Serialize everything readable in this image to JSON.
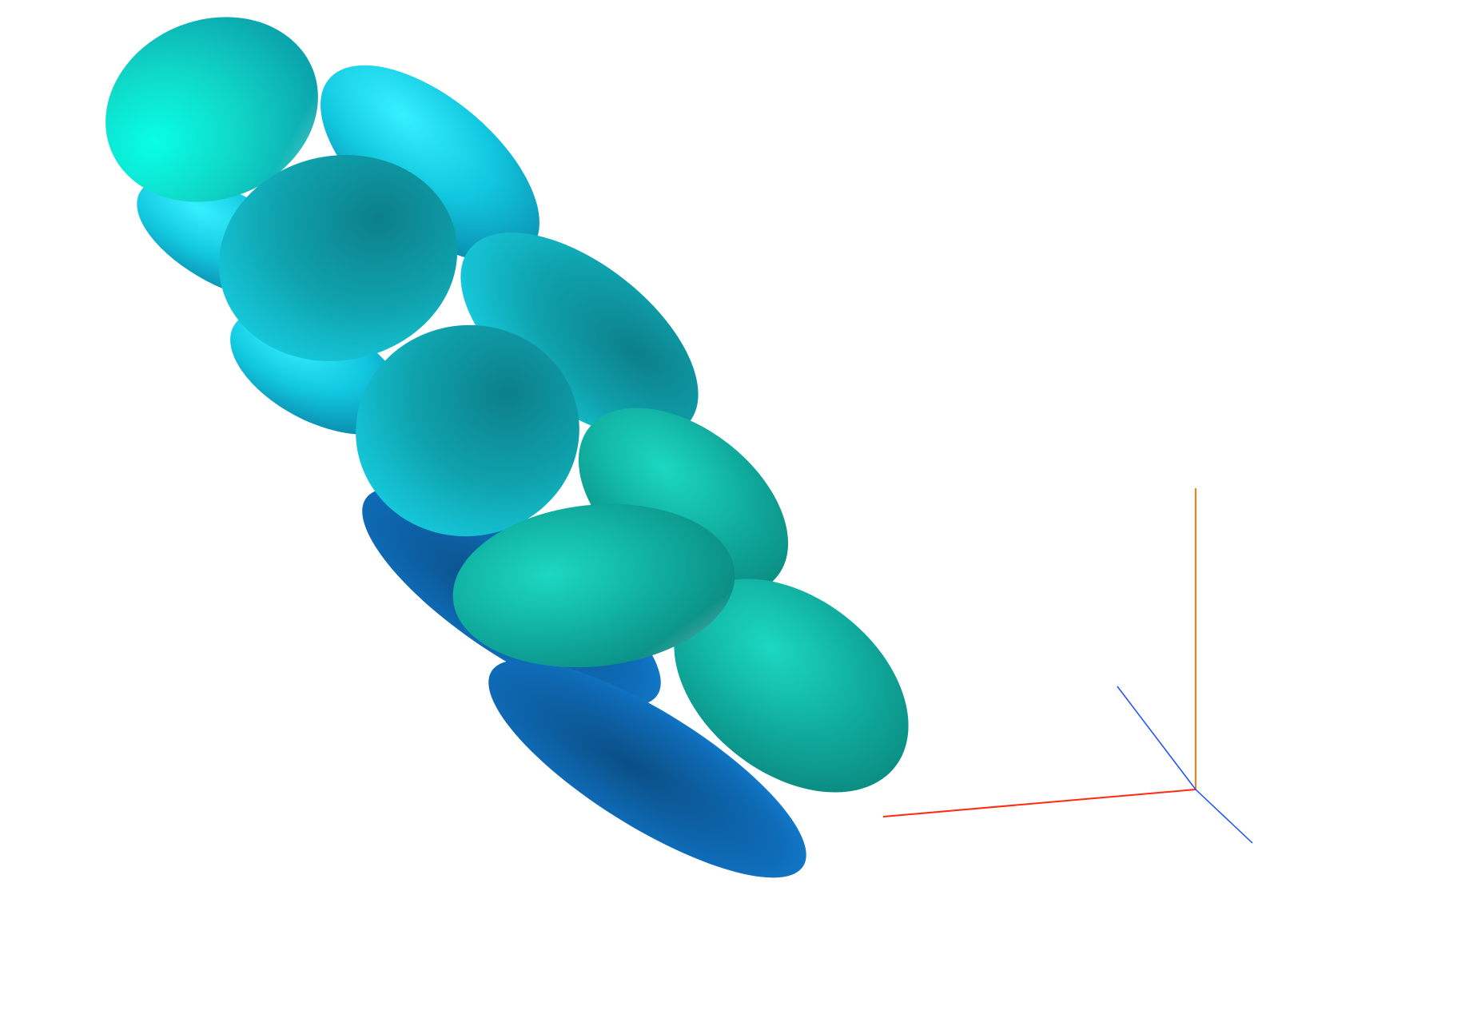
{
  "scene": {
    "background": "#ffffff",
    "palette": {
      "cyan_light": "#08f5dc",
      "cyan": "#10d6e6",
      "teal": "#0fa8b0",
      "teal_dark": "#0a7f86",
      "sea_green": "#12b8a4",
      "sea_green_dark": "#0a8b7c",
      "blue": "#1486d6",
      "blue_dark": "#0a4f86"
    },
    "objects": [
      {
        "name": "ellipsoid-back-upper-right",
        "color": "cyan"
      },
      {
        "name": "ellipsoid-back-upper-left",
        "color": "cyan"
      },
      {
        "name": "ellipsoid-front-top",
        "color": "cyan_light"
      },
      {
        "name": "ellipsoid-back-middle",
        "color": "teal"
      },
      {
        "name": "ellipsoid-back-middle-left",
        "color": "cyan"
      },
      {
        "name": "ellipsoid-front-second",
        "color": "teal"
      },
      {
        "name": "ellipsoid-back-lower-right",
        "color": "sea_green"
      },
      {
        "name": "ellipsoid-back-lower-left",
        "color": "blue"
      },
      {
        "name": "ellipsoid-front-third",
        "color": "teal"
      },
      {
        "name": "ellipsoid-bottom-right",
        "color": "sea_green"
      },
      {
        "name": "ellipsoid-bottom-long",
        "color": "blue"
      },
      {
        "name": "ellipsoid-front-fourth",
        "color": "sea_green"
      }
    ],
    "axes": {
      "x_color": "#ff2a10",
      "y_color": "#ff7a10",
      "z_color": "#1a4dff"
    }
  }
}
